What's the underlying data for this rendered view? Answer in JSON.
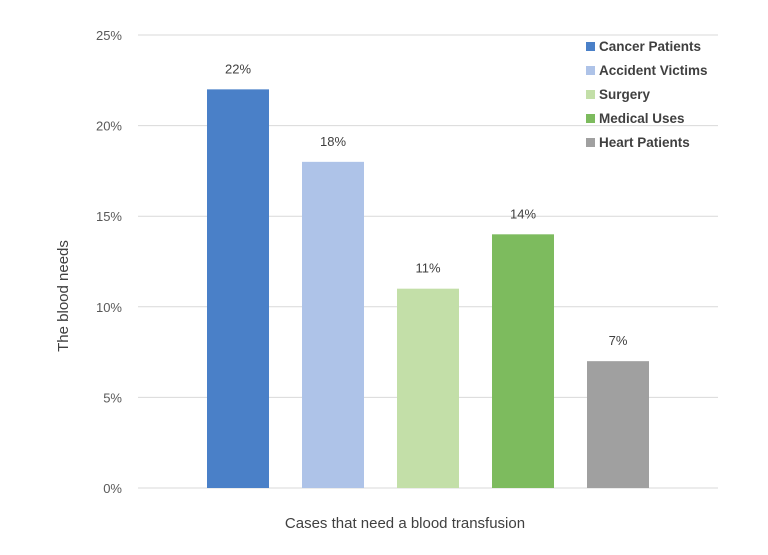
{
  "chart_data": {
    "type": "bar",
    "title": "",
    "xlabel": "Cases that need a blood transfusion",
    "ylabel": "The blood needs",
    "categories": [
      "Cancer Patients",
      "Accident Victims",
      "Surgery",
      "Medical Uses",
      "Heart Patients"
    ],
    "values": [
      22,
      18,
      11,
      14,
      7
    ],
    "data_labels": [
      "22%",
      "18%",
      "11%",
      "14%",
      "7%"
    ],
    "colors": [
      "#4a80c8",
      "#aec3e8",
      "#c3dfa8",
      "#7dbb5e",
      "#a0a0a0"
    ],
    "ylim": [
      0,
      25
    ],
    "yticks": [
      0,
      5,
      10,
      15,
      20,
      25
    ],
    "ytick_labels": [
      "0%",
      "5%",
      "10%",
      "15%",
      "20%",
      "25%"
    ],
    "grid": true,
    "legend_position": "top-right",
    "legend": [
      "Cancer Patients",
      "Accident Victims",
      "Surgery",
      "Medical Uses",
      "Heart Patients"
    ]
  }
}
